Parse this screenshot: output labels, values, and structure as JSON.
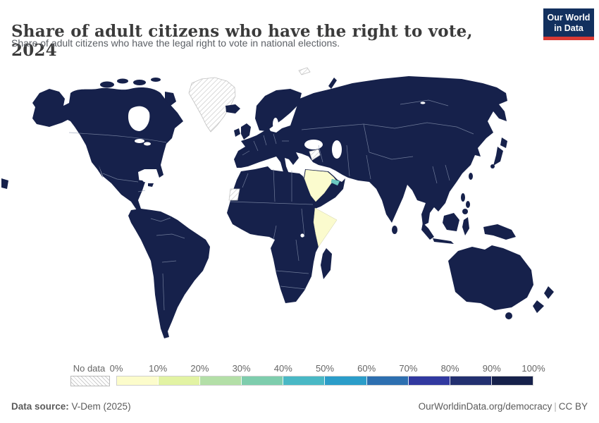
{
  "header": {
    "title": "Share of adult citizens who have the right to vote, 2024",
    "subtitle": "Share of adult citizens who have the legal right to vote in national elections.",
    "logo": {
      "line1": "Our World",
      "line2": "in Data",
      "bg_color": "#12305e",
      "accent_color": "#d93a34"
    }
  },
  "chart_data": {
    "type": "choropleth_map",
    "title": "Share of adult citizens who have the right to vote, 2024",
    "unit": "% of adult citizens with legal right to vote",
    "projection": "world",
    "legend": {
      "no_data_label": "No data",
      "ticks": [
        "0%",
        "10%",
        "20%",
        "30%",
        "40%",
        "50%",
        "60%",
        "70%",
        "80%",
        "90%",
        "100%"
      ],
      "bins": [
        {
          "range": "0-10%",
          "color": "#fcfccb"
        },
        {
          "range": "10-20%",
          "color": "#e2f3a3"
        },
        {
          "range": "20-30%",
          "color": "#b3dfa7"
        },
        {
          "range": "30-40%",
          "color": "#7ecdad"
        },
        {
          "range": "40-50%",
          "color": "#49b8c5"
        },
        {
          "range": "50-60%",
          "color": "#2b9dc9"
        },
        {
          "range": "60-70%",
          "color": "#2d6fb0"
        },
        {
          "range": "70-80%",
          "color": "#3139a0"
        },
        {
          "range": "80-90%",
          "color": "#233070"
        },
        {
          "range": "90-100%",
          "color": "#16214b"
        }
      ]
    },
    "values": [
      {
        "region": "Most countries (Americas, Europe, Africa, Asia, Oceania)",
        "value": "90-100%"
      },
      {
        "region": "Saudi Arabia",
        "value": "0-10%"
      },
      {
        "region": "Somalia",
        "value": "0-10%"
      },
      {
        "region": "United Arab Emirates",
        "value": "30-50%"
      },
      {
        "region": "Greenland",
        "value": "No data"
      },
      {
        "region": "Western Sahara",
        "value": "No data"
      },
      {
        "region": "Syria",
        "value": "No data"
      }
    ],
    "map_colors": {
      "ocean": "#ffffff",
      "country_border": "#8d99b3",
      "dominant_fill": "#16214b",
      "no_data_hatch": "#cccccc"
    }
  },
  "footer": {
    "source_label": "Data source:",
    "source_value": " V-Dem (2025)",
    "url": "OurWorldinData.org/democracy",
    "license": "CC BY"
  }
}
